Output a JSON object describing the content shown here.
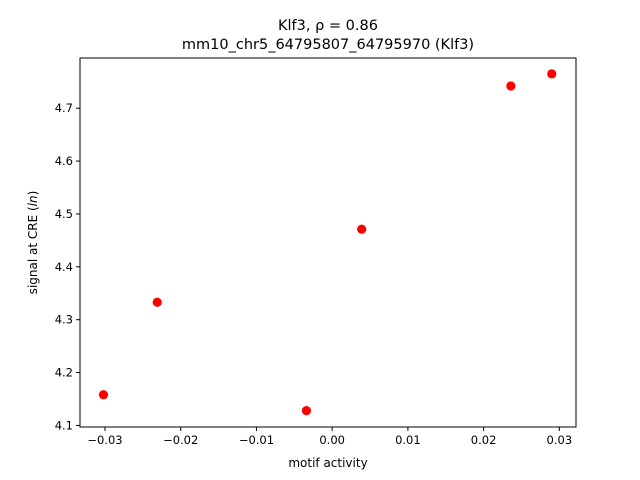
{
  "chart_data": {
    "type": "scatter",
    "title_line1": "Klf3, ρ = 0.86",
    "title_line2": "mm10_chr5_64795807_64795970 (Klf3)",
    "xlabel": "motif activity",
    "ylabel_prefix": "signal at CRE (",
    "ylabel_unit": "ln",
    "ylabel_suffix": ")",
    "xlim": [
      -0.0333,
      0.0322
    ],
    "ylim": [
      4.097,
      4.795
    ],
    "x_ticks": [
      -0.03,
      -0.02,
      -0.01,
      0.0,
      0.01,
      0.02,
      0.03
    ],
    "x_tick_labels": [
      "−0.03",
      "−0.02",
      "−0.01",
      "0.00",
      "0.01",
      "0.02",
      "0.03"
    ],
    "y_ticks": [
      4.1,
      4.2,
      4.3,
      4.4,
      4.5,
      4.6,
      4.7
    ],
    "y_tick_labels": [
      "4.1",
      "4.2",
      "4.3",
      "4.4",
      "4.5",
      "4.6",
      "4.7"
    ],
    "point_color": "#ff0000",
    "grid": false,
    "points": [
      {
        "x": -0.0302,
        "y": 4.158
      },
      {
        "x": -0.0231,
        "y": 4.333
      },
      {
        "x": -0.0034,
        "y": 4.128
      },
      {
        "x": 0.0039,
        "y": 4.471
      },
      {
        "x": 0.0236,
        "y": 4.742
      },
      {
        "x": 0.029,
        "y": 4.765
      }
    ]
  }
}
